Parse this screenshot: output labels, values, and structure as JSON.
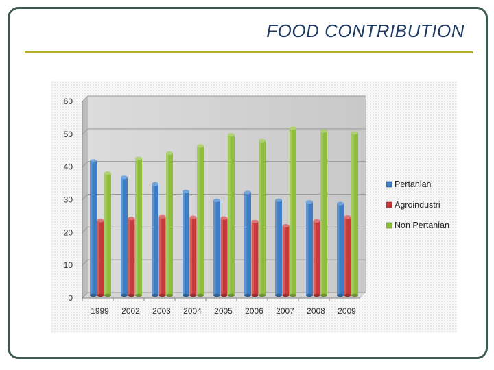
{
  "title": "FOOD CONTRIBUTION",
  "chart_data": {
    "type": "bar",
    "categories": [
      "1999",
      "2002",
      "2003",
      "2004",
      "2005",
      "2006",
      "2007",
      "2008",
      "2009"
    ],
    "series": [
      {
        "name": "Pertanian",
        "values": [
          41,
          36,
          34,
          31.7,
          29,
          31.4,
          29,
          28.5,
          28
        ],
        "color": "#3c7dc4"
      },
      {
        "name": "Agroindustri",
        "values": [
          22.8,
          23.5,
          24,
          23.8,
          23.6,
          22.5,
          21.2,
          22.7,
          23.9
        ],
        "color": "#c83a3a"
      },
      {
        "name": "Non Pertanian",
        "values": [
          37.3,
          41.8,
          43.4,
          45.6,
          49,
          47.2,
          51,
          50.2,
          49.6
        ],
        "color": "#8fbd3e"
      }
    ],
    "ylim": [
      0,
      60
    ],
    "yticks": [
      "0",
      "10",
      "20",
      "30",
      "40",
      "50",
      "60"
    ],
    "grid": true,
    "legend_position": "right",
    "xlabel": "",
    "ylabel": ""
  }
}
